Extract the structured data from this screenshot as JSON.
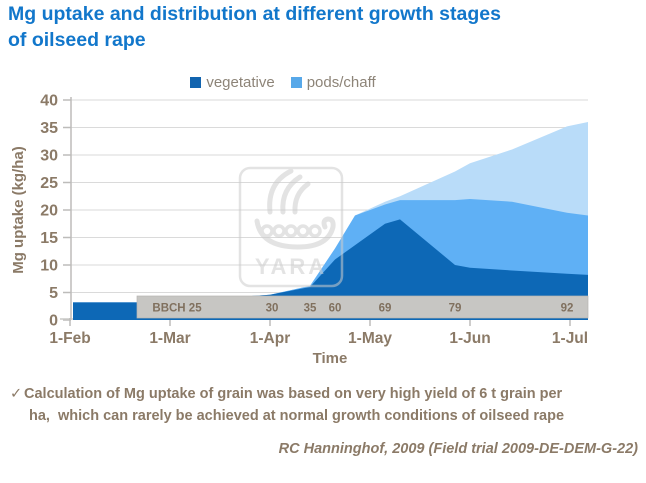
{
  "slide": {
    "title_line1": "Mg uptake and distribution at different growth stages",
    "title_line2": "of oilseed rape",
    "footnote_check": "✓",
    "footnote_line1": "Calculation of Mg uptake of grain was based on very high yield of 6 t grain per",
    "footnote_line2": "ha,  which can rarely be achieved at normal growth conditions of oilseed rape",
    "credit": "RC Hanninghof, 2009 (Field trial 2009-DE-DEM-G-22)",
    "watermark_text": "YARA"
  },
  "legend": {
    "items": [
      {
        "label": "vegetative",
        "color": "#1264af"
      },
      {
        "label": "pods/chaff",
        "color": "#57a8e9"
      }
    ]
  },
  "chart_data": {
    "type": "area",
    "title": "Mg uptake and distribution at different growth stages of oilseed rape",
    "xlabel": "Time",
    "ylabel": "Mg uptake (kg/ha)",
    "x_ticks": [
      "1-Feb",
      "1-Mar",
      "1-Apr",
      "1-May",
      "1-Jun",
      "1-Jul"
    ],
    "y_ticks": [
      0,
      5,
      10,
      15,
      20,
      25,
      30,
      35,
      40
    ],
    "ylim": [
      0,
      40
    ],
    "grid": "horizontal",
    "legend_position": "top-center",
    "x_unit": "months after 1-Feb (0 = 1-Feb, 5 = 1-Jul)",
    "note": "three shaded bands; each series lists the upper boundary (kg/ha) of its band; lower bands are hidden behind the gray BBCH stage strip below ~4.5 kg/ha",
    "series": [
      {
        "name": "total uptake (light shading)",
        "color": "#b9dcf9",
        "points": [
          [
            0.03,
            3.2
          ],
          [
            0.67,
            3.2
          ],
          [
            1.0,
            3.3
          ],
          [
            2.0,
            4.6
          ],
          [
            2.4,
            6.2
          ],
          [
            2.65,
            13.0
          ],
          [
            2.85,
            19.0
          ],
          [
            3.15,
            21.5
          ],
          [
            3.3,
            22.5
          ],
          [
            3.85,
            27.0
          ],
          [
            4.0,
            28.5
          ],
          [
            4.42,
            31.0
          ],
          [
            4.97,
            35.2
          ],
          [
            5.18,
            36.0
          ]
        ]
      },
      {
        "name": "pods/chaff",
        "color": "#5fb0f5",
        "points": [
          [
            0.03,
            3.2
          ],
          [
            0.67,
            3.2
          ],
          [
            1.0,
            3.3
          ],
          [
            2.0,
            4.6
          ],
          [
            2.4,
            6.2
          ],
          [
            2.65,
            13.0
          ],
          [
            2.85,
            19.0
          ],
          [
            3.15,
            21.0
          ],
          [
            3.3,
            21.8
          ],
          [
            3.85,
            21.8
          ],
          [
            4.0,
            22.0
          ],
          [
            4.42,
            21.5
          ],
          [
            4.97,
            19.5
          ],
          [
            5.18,
            19.0
          ]
        ]
      },
      {
        "name": "vegetative",
        "color": "#0d68b6",
        "points": [
          [
            0.03,
            3.2
          ],
          [
            0.67,
            3.2
          ],
          [
            1.0,
            3.3
          ],
          [
            2.0,
            4.6
          ],
          [
            2.4,
            6.0
          ],
          [
            2.65,
            11.0
          ],
          [
            3.15,
            17.5
          ],
          [
            3.3,
            18.3
          ],
          [
            3.85,
            10.0
          ],
          [
            4.0,
            9.5
          ],
          [
            4.42,
            9.0
          ],
          [
            4.97,
            8.4
          ],
          [
            5.18,
            8.2
          ]
        ]
      }
    ],
    "bbch_band": {
      "fill": "#c7c6c3",
      "label_color": "#80705e",
      "items": [
        {
          "label": "BBCH 25",
          "x": 1.07
        },
        {
          "label": "30",
          "x": 2.02
        },
        {
          "label": "35",
          "x": 2.4
        },
        {
          "label": "60",
          "x": 2.65
        },
        {
          "label": "69",
          "x": 3.15
        },
        {
          "label": "79",
          "x": 3.85
        },
        {
          "label": "92",
          "x": 4.97
        }
      ]
    }
  }
}
